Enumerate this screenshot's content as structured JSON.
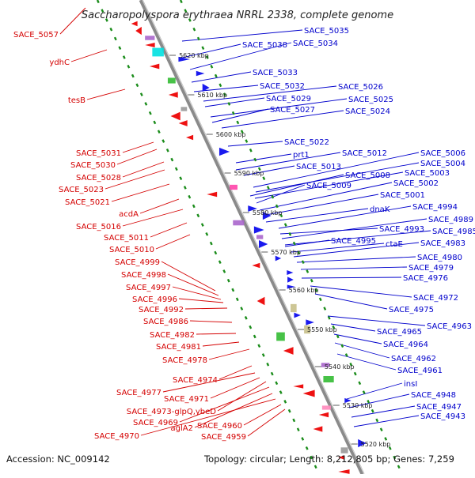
{
  "title": "Saccharopolyspora erythraea NRRL 2338, complete genome",
  "footer": {
    "accession": "Accession: NC_009142",
    "topology": "Topology: circular; Length: 8,212,805 bp; Genes: 7,259"
  },
  "colors": {
    "forward_label": "#d40000",
    "reverse_label": "#0000cc",
    "backbone": "#8a8a8a",
    "ruler": "#1a8c1a"
  },
  "ticks": [
    "5620 kbp",
    "5610 kbp",
    "5600 kbp",
    "5590 kbp",
    "5580 kbp",
    "5570 kbp",
    "5560 kbp",
    "5550 kbp",
    "5540 kbp",
    "5530 kbp",
    "5520 kbp"
  ],
  "left_labels": [
    "SACE_5057",
    "ydhC",
    "tesB",
    "SACE_5031",
    "SACE_5030",
    "SACE_5028",
    "SACE_5023",
    "SACE_5021",
    "acdA",
    "SACE_5016",
    "SACE_5011",
    "SACE_5010",
    "SACE_4999",
    "SACE_4998",
    "SACE_4997",
    "SACE_4996",
    "SACE_4992",
    "SACE_4986",
    "SACE_4982",
    "SACE_4981",
    "SACE_4978",
    "SACE_4974",
    "SACE_4977",
    "SACE_4971",
    "SACE_4973-glpQ,ybeD",
    "SACE_4969",
    "aglA2",
    "SACE_4970",
    "SACE_4960",
    "SACE_4959"
  ],
  "right_labels": [
    "SACE_5035",
    "SACE_5038",
    "SACE_5034",
    "SACE_5033",
    "SACE_5032",
    "SACE_5026",
    "SACE_5029",
    "SACE_5025",
    "SACE_5027",
    "SACE_5024",
    "SACE_5022",
    "prt1",
    "SACE_5012",
    "SACE_5006",
    "SACE_5013",
    "SACE_5004",
    "SACE_5008",
    "SACE_5003",
    "SACE_5009",
    "SACE_5002",
    "SACE_5001",
    "dnaK",
    "SACE_4994",
    "SACE_4993",
    "SACE_4989",
    "SACE_4985",
    "SACE_4995",
    "ctaE",
    "SACE_4983",
    "SACE_4980",
    "SACE_4979",
    "SACE_4976",
    "SACE_4972",
    "SACE_4975",
    "SACE_4963",
    "SACE_4965",
    "SACE_4964",
    "SACE_4962",
    "SACE_4961",
    "insI",
    "SACE_4948",
    "SACE_4947",
    "SACE_4943"
  ]
}
